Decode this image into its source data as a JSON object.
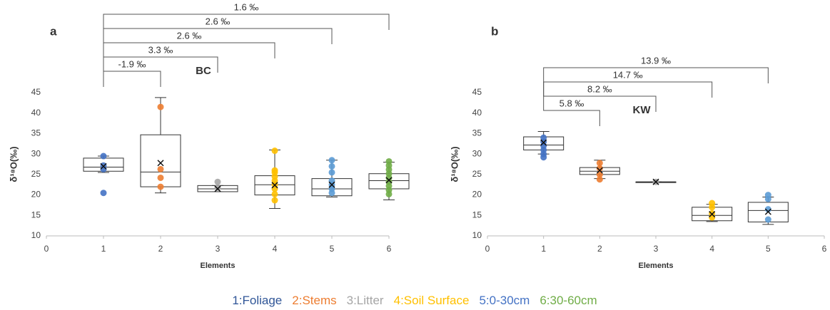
{
  "chart_data": [
    {
      "type": "box",
      "title": "a",
      "annotation": "BC",
      "xlabel": "Elements",
      "ylabel": "δ¹⁸O(‰)",
      "xlim": [
        0,
        6
      ],
      "xticks": [
        0,
        1,
        2,
        3,
        4,
        5,
        6
      ],
      "ylim": [
        10,
        45
      ],
      "yticks": [
        10,
        15,
        20,
        25,
        30,
        35,
        40,
        45
      ],
      "boxes": [
        {
          "x": 1,
          "min": 25.5,
          "q1": 25.8,
          "median": 26.8,
          "q3": 29,
          "max": 29.5,
          "mean": 27,
          "color": "#4472c4",
          "points": [
            20.5,
            26.3,
            27.2,
            29.5
          ]
        },
        {
          "x": 2,
          "min": 20.5,
          "q1": 22,
          "median": 25.6,
          "q3": 34.7,
          "max": 43.8,
          "mean": 27.8,
          "color": "#ed7d31",
          "points": [
            22,
            24.2,
            26.3,
            41.5
          ]
        },
        {
          "x": 3,
          "min": 20.8,
          "q1": 20.8,
          "median": 21.5,
          "q3": 22.3,
          "max": 22.3,
          "mean": 21.5,
          "color": "#a5a5a5",
          "points": [
            23.2,
            21.8
          ]
        },
        {
          "x": 4,
          "min": 16.7,
          "q1": 20,
          "median": 22.5,
          "q3": 24.7,
          "max": 31,
          "mean": 22.4,
          "color": "#ffc000",
          "points": [
            18.7,
            20.2,
            21.5,
            22.5,
            23.5,
            24.5,
            25.5,
            26,
            30.8
          ]
        },
        {
          "x": 5,
          "min": 19.5,
          "q1": 19.8,
          "median": 21.5,
          "q3": 24,
          "max": 28.5,
          "mean": 22.5,
          "color": "#5b9bd5",
          "points": [
            20.5,
            21.5,
            22.5,
            23.5,
            25.5,
            27,
            28.5
          ]
        },
        {
          "x": 6,
          "min": 18.8,
          "q1": 21.5,
          "median": 23.5,
          "q3": 25.2,
          "max": 28,
          "mean": 23.6,
          "color": "#70ad47",
          "points": [
            20.2,
            21.2,
            22.2,
            23.2,
            24.2,
            25.2,
            26.2,
            27.2,
            28.2
          ]
        }
      ],
      "brackets": [
        {
          "from": 1,
          "to": 2,
          "label": "-1.9 ‰"
        },
        {
          "from": 1,
          "to": 3,
          "label": "3.3 ‰"
        },
        {
          "from": 1,
          "to": 4,
          "label": "2.6 ‰"
        },
        {
          "from": 1,
          "to": 5,
          "label": "2.6 ‰"
        },
        {
          "from": 1,
          "to": 6,
          "label": "1.6 ‰"
        }
      ]
    },
    {
      "type": "box",
      "title": "b",
      "annotation": "KW",
      "xlabel": "Elements",
      "ylabel": "δ¹⁸O(‰)",
      "xlim": [
        0,
        6
      ],
      "xticks": [
        0,
        1,
        2,
        3,
        4,
        5,
        6
      ],
      "ylim": [
        10,
        45
      ],
      "yticks": [
        10,
        15,
        20,
        25,
        30,
        35,
        40,
        45
      ],
      "boxes": [
        {
          "x": 1,
          "min": 30,
          "q1": 31,
          "median": 32.2,
          "q3": 34.2,
          "max": 35.5,
          "mean": 32.8,
          "color": "#4472c4",
          "points": [
            29.2,
            30,
            31,
            32,
            33,
            34
          ]
        },
        {
          "x": 2,
          "min": 24,
          "q1": 25,
          "median": 25.8,
          "q3": 26.7,
          "max": 28.5,
          "mean": 26,
          "color": "#ed7d31",
          "points": [
            23.8,
            25,
            26.5,
            27.8
          ]
        },
        {
          "x": 3,
          "min": 23.2,
          "q1": 23.2,
          "median": 23.2,
          "q3": 23.2,
          "max": 23.2,
          "mean": 23.2,
          "color": "#a5a5a5",
          "points": [
            23.2
          ]
        },
        {
          "x": 4,
          "min": 13.5,
          "q1": 13.7,
          "median": 15,
          "q3": 17,
          "max": 17.7,
          "mean": 15.3,
          "color": "#ffc000",
          "points": [
            14.5,
            15.5,
            17,
            18
          ]
        },
        {
          "x": 5,
          "min": 12.8,
          "q1": 13.4,
          "median": 16.2,
          "q3": 18.2,
          "max": 19.5,
          "mean": 15.9,
          "color": "#5b9bd5",
          "points": [
            14,
            16.5,
            19,
            20
          ]
        }
      ],
      "brackets": [
        {
          "from": 1,
          "to": 2,
          "label": "5.8 ‰"
        },
        {
          "from": 1,
          "to": 3,
          "label": "8.2 ‰"
        },
        {
          "from": 1,
          "to": 4,
          "label": "14.7 ‰"
        },
        {
          "from": 1,
          "to": 5,
          "label": "13.9 ‰"
        }
      ]
    }
  ],
  "legend": [
    {
      "name": "1:Foliage",
      "color": "#2f5597"
    },
    {
      "name": "2:Stems",
      "color": "#ed7d31"
    },
    {
      "name": "3:Litter",
      "color": "#a5a5a5"
    },
    {
      "name": "4:Soil Surface",
      "color": "#ffc000"
    },
    {
      "name": "5:0-30cm",
      "color": "#4472c4"
    },
    {
      "name": "6:30-60cm",
      "color": "#70ad47"
    }
  ]
}
